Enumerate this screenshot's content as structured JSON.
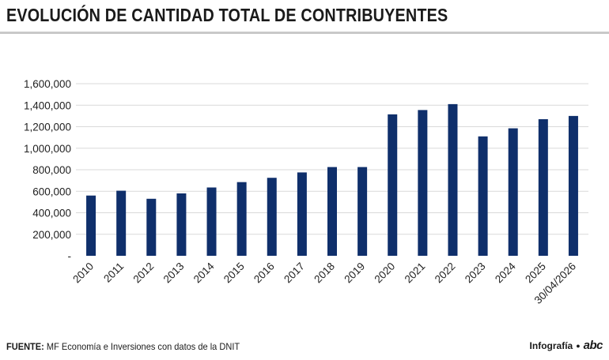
{
  "header": {
    "title": "EVOLUCIÓN DE CANTIDAD TOTAL DE CONTRIBUYENTES"
  },
  "footer": {
    "source_label": "FUENTE:",
    "source_text": "MF Economía e Inversiones con datos de la DNIT",
    "credit": "Infografía",
    "dot": "●",
    "logo": "abc"
  },
  "chart_data": {
    "type": "bar",
    "categories": [
      "2010",
      "2011",
      "2012",
      "2013",
      "2014",
      "2015",
      "2016",
      "2017",
      "2018",
      "2019",
      "2020",
      "2021",
      "2022",
      "2023",
      "2024",
      "2025",
      "30/04/2026"
    ],
    "values": [
      560000,
      605000,
      530000,
      580000,
      635000,
      685000,
      725000,
      775000,
      825000,
      825000,
      1315000,
      1355000,
      1410000,
      1110000,
      1185000,
      1270000,
      1300000
    ],
    "y_ticks": [
      "-",
      "200,000",
      "400,000",
      "600,000",
      "800,000",
      "1,000,000",
      "1,200,000",
      "1,400,000",
      "1,600,000"
    ],
    "ylim": [
      0,
      1600000
    ],
    "grid": true,
    "bar_color": "#0f2f6b",
    "grid_color": "#d9d9d9"
  }
}
